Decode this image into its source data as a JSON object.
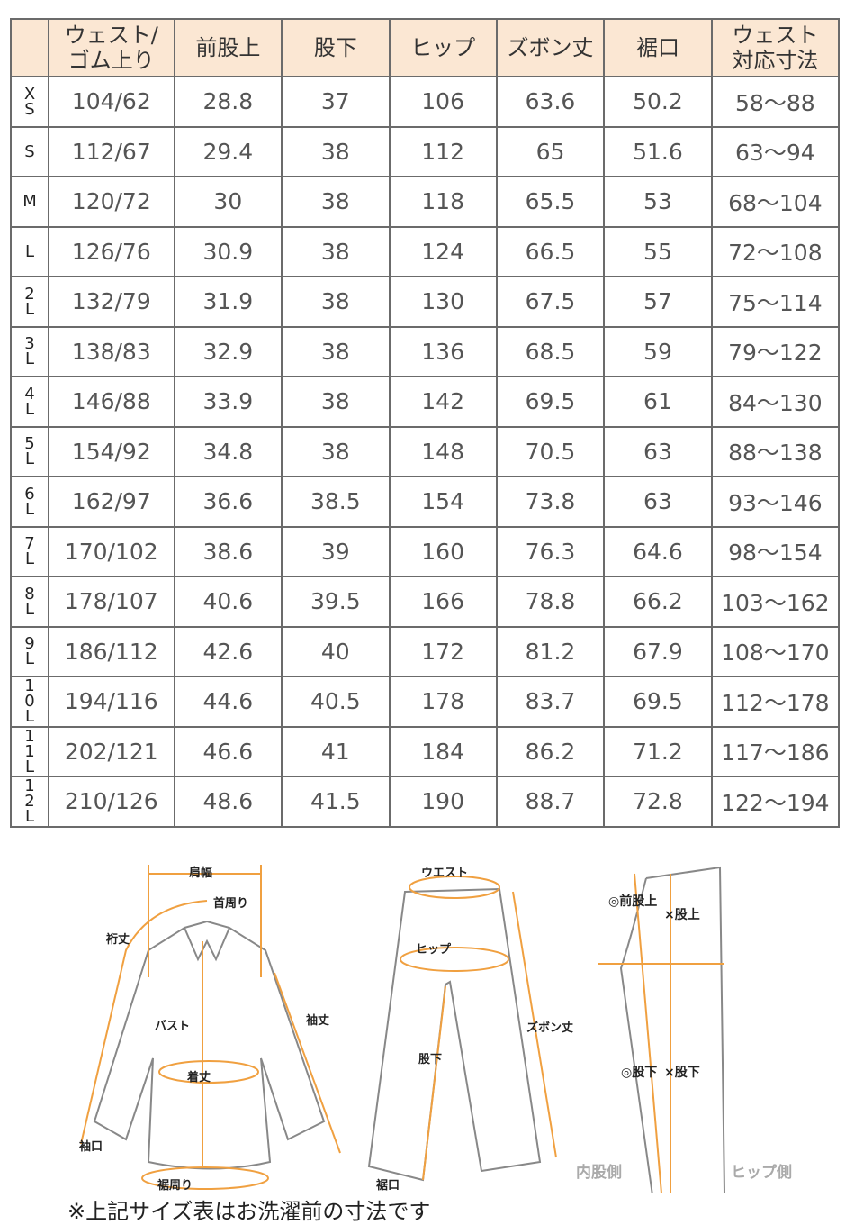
{
  "table": {
    "headers": [
      "",
      "ウェスト/\nゴム上り",
      "前股上",
      "股下",
      "ヒップ",
      "ズボン丈",
      "裾口",
      "ウェスト\n対応寸法"
    ],
    "rows": [
      [
        "XS",
        "104/62",
        "28.8",
        "37",
        "106",
        "63.6",
        "50.2",
        "58～88"
      ],
      [
        "S",
        "112/67",
        "29.4",
        "38",
        "112",
        "65",
        "51.6",
        "63～94"
      ],
      [
        "M",
        "120/72",
        "30",
        "38",
        "118",
        "65.5",
        "53",
        "68～104"
      ],
      [
        "L",
        "126/76",
        "30.9",
        "38",
        "124",
        "66.5",
        "55",
        "72～108"
      ],
      [
        "2L",
        "132/79",
        "31.9",
        "38",
        "130",
        "67.5",
        "57",
        "75～114"
      ],
      [
        "3L",
        "138/83",
        "32.9",
        "38",
        "136",
        "68.5",
        "59",
        "79～122"
      ],
      [
        "4L",
        "146/88",
        "33.9",
        "38",
        "142",
        "69.5",
        "61",
        "84～130"
      ],
      [
        "5L",
        "154/92",
        "34.8",
        "38",
        "148",
        "70.5",
        "63",
        "88～138"
      ],
      [
        "6L",
        "162/97",
        "36.6",
        "38.5",
        "154",
        "73.8",
        "63",
        "93～146"
      ],
      [
        "7L",
        "170/102",
        "38.6",
        "39",
        "160",
        "76.3",
        "64.6",
        "98～154"
      ],
      [
        "8L",
        "178/107",
        "40.6",
        "39.5",
        "166",
        "78.8",
        "66.2",
        "103～162"
      ],
      [
        "9L",
        "186/112",
        "42.6",
        "40",
        "172",
        "81.2",
        "67.9",
        "108～170"
      ],
      [
        "10L",
        "194/116",
        "44.6",
        "40.5",
        "178",
        "83.7",
        "69.5",
        "112～178"
      ],
      [
        "11L",
        "202/121",
        "46.6",
        "41",
        "184",
        "86.2",
        "71.2",
        "117～186"
      ],
      [
        "12L",
        "210/126",
        "48.6",
        "41.5",
        "190",
        "88.7",
        "72.8",
        "122～194"
      ]
    ]
  },
  "diagram": {
    "shirt": {
      "shoulder": "肩幅",
      "neck": "首周り",
      "yuki": "裄丈",
      "bust": "バスト",
      "sleeve": "袖丈",
      "length": "着丈",
      "cuff": "袖口",
      "hem": "裾周り"
    },
    "pants": {
      "waist": "ウエスト",
      "hip": "ヒップ",
      "inseam": "股下",
      "length": "ズボン丈",
      "hem": "裾口"
    },
    "side": {
      "good_rise": "◎前股上",
      "bad_rise": "×股上",
      "good_inseam": "◎股下",
      "bad_inseam": "×股下",
      "inner": "内股側",
      "hip_side": "ヒップ側"
    },
    "accent": "#f0a040"
  },
  "note": "※上記サイズ表はお洗濯前の寸法です"
}
